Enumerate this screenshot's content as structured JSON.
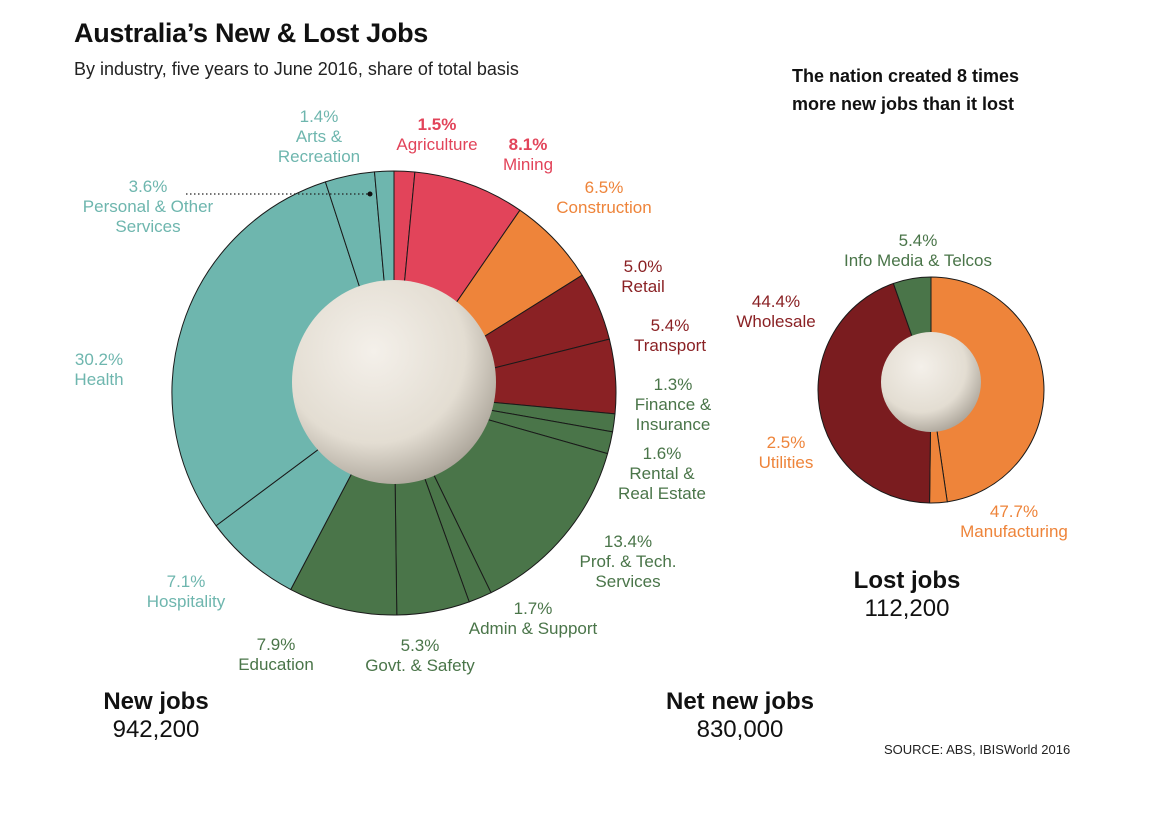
{
  "header": {
    "title": "Australia’s New & Lost Jobs",
    "subtitle": "By industry, five years to June 2016, share of total basis",
    "note_line1": "The nation created 8 times",
    "note_line2": "more new jobs than it lost"
  },
  "totals": {
    "new_label": "New jobs",
    "new_value": "942,200",
    "net_label": "Net new jobs",
    "net_value": "830,000",
    "lost_label": "Lost jobs",
    "lost_value": "112,200"
  },
  "source": "SOURCE: ABS, IBISWorld 2016",
  "colors": {
    "teal": "#6eb6ae",
    "red": "#e2445a",
    "orange": "#ee843a",
    "darkred": "#8a2124",
    "green": "#4a7549",
    "hub": "#e6e0d6"
  },
  "chart_data": [
    {
      "type": "pie",
      "title": "New jobs",
      "total": 942200,
      "slices": [
        {
          "label": "Agriculture",
          "label_lines": [
            "Agriculture"
          ],
          "value": 1.5,
          "pct": "1.5%",
          "color": "#e2445a",
          "text_color": "#e2445a"
        },
        {
          "label": "Mining",
          "label_lines": [
            "Mining"
          ],
          "value": 8.1,
          "pct": "8.1%",
          "color": "#e2445a",
          "text_color": "#e2445a"
        },
        {
          "label": "Construction",
          "label_lines": [
            "Construction"
          ],
          "value": 6.5,
          "pct": "6.5%",
          "color": "#ee843a",
          "text_color": "#ee843a"
        },
        {
          "label": "Retail",
          "label_lines": [
            "Retail"
          ],
          "value": 5.0,
          "pct": "5.0%",
          "color": "#8a2124",
          "text_color": "#8a2124"
        },
        {
          "label": "Transport",
          "label_lines": [
            "Transport"
          ],
          "value": 5.4,
          "pct": "5.4%",
          "color": "#8a2124",
          "text_color": "#8a2124"
        },
        {
          "label": "Finance & Insurance",
          "label_lines": [
            "Finance &",
            "Insurance"
          ],
          "value": 1.3,
          "pct": "1.3%",
          "color": "#4a7549",
          "text_color": "#4a7549"
        },
        {
          "label": "Rental & Real Estate",
          "label_lines": [
            "Rental &",
            "Real Estate"
          ],
          "value": 1.6,
          "pct": "1.6%",
          "color": "#4a7549",
          "text_color": "#4a7549"
        },
        {
          "label": "Prof. & Tech. Services",
          "label_lines": [
            "Prof. & Tech.",
            "Services"
          ],
          "value": 13.4,
          "pct": "13.4%",
          "color": "#4a7549",
          "text_color": "#4a7549"
        },
        {
          "label": "Admin & Support",
          "label_lines": [
            "Admin & Support"
          ],
          "value": 1.7,
          "pct": "1.7%",
          "color": "#4a7549",
          "text_color": "#4a7549"
        },
        {
          "label": "Govt. & Safety",
          "label_lines": [
            "Govt. & Safety"
          ],
          "value": 5.3,
          "pct": "5.3%",
          "color": "#4a7549",
          "text_color": "#4a7549"
        },
        {
          "label": "Education",
          "label_lines": [
            "Education"
          ],
          "value": 7.9,
          "pct": "7.9%",
          "color": "#4a7549",
          "text_color": "#4a7549"
        },
        {
          "label": "Hospitality",
          "label_lines": [
            "Hospitality"
          ],
          "value": 7.1,
          "pct": "7.1%",
          "color": "#6eb6ae",
          "text_color": "#6eb6ae"
        },
        {
          "label": "Health",
          "label_lines": [
            "Health"
          ],
          "value": 30.2,
          "pct": "30.2%",
          "color": "#6eb6ae",
          "text_color": "#6eb6ae"
        },
        {
          "label": "Personal & Other Services",
          "label_lines": [
            "Personal & Other",
            "Services"
          ],
          "value": 3.6,
          "pct": "3.6%",
          "color": "#6eb6ae",
          "text_color": "#6eb6ae"
        },
        {
          "label": "Arts & Recreation",
          "label_lines": [
            "Arts &",
            "Recreation"
          ],
          "value": 1.4,
          "pct": "1.4%",
          "color": "#6eb6ae",
          "text_color": "#6eb6ae"
        }
      ]
    },
    {
      "type": "pie",
      "title": "Lost jobs",
      "total": 112200,
      "slices": [
        {
          "label": "Manufacturing",
          "label_lines": [
            "Manufacturing"
          ],
          "value": 47.7,
          "pct": "47.7%",
          "color": "#ee843a",
          "text_color": "#ee843a"
        },
        {
          "label": "Utilities",
          "label_lines": [
            "Utilities"
          ],
          "value": 2.5,
          "pct": "2.5%",
          "color": "#ee843a",
          "text_color": "#ee843a"
        },
        {
          "label": "Wholesale",
          "label_lines": [
            "Wholesale"
          ],
          "value": 44.4,
          "pct": "44.4%",
          "color": "#7a1c1f",
          "text_color": "#8a2124"
        },
        {
          "label": "Info Media & Telcos",
          "label_lines": [
            "Info Media & Telcos"
          ],
          "value": 5.4,
          "pct": "5.4%",
          "color": "#4a7549",
          "text_color": "#4a7549"
        }
      ]
    }
  ]
}
